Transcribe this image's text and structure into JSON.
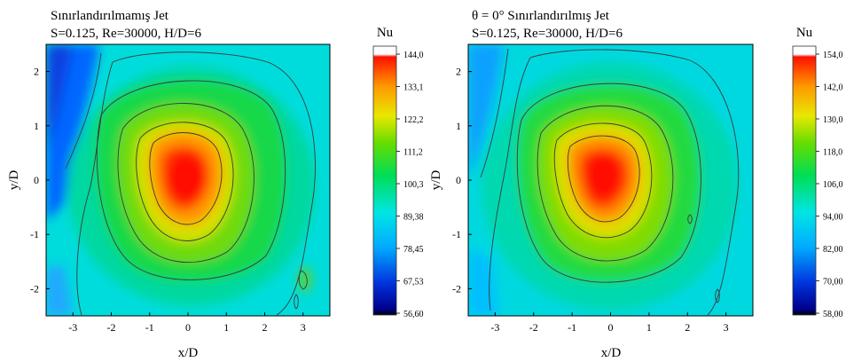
{
  "chart_data": [
    {
      "type": "heatmap",
      "title": "Sınırlandırılmamış Jet",
      "subtitle": "S=0.125, Re=30000, H/D=6",
      "xlabel": "x/D",
      "ylabel": "y/D",
      "xlim": [
        -3.7,
        3.7
      ],
      "ylim": [
        -2.5,
        2.5
      ],
      "xticks": [
        "-3",
        "-2",
        "-1",
        "0",
        "1",
        "2",
        "3"
      ],
      "yticks": [
        "2",
        "1",
        "0",
        "-1",
        "-2"
      ],
      "colorbar": {
        "title": "Nu",
        "range": [
          56.6,
          144.0
        ],
        "tick_labels": [
          "144,0",
          "133,1",
          "122,2",
          "111,2",
          "100,3",
          "89,38",
          "78,45",
          "67,53",
          "56,60"
        ]
      },
      "peak": {
        "x": 0.0,
        "y": 0.0,
        "value": 144.0
      },
      "contour_levels": [
        82,
        94,
        106,
        118,
        130
      ]
    },
    {
      "type": "heatmap",
      "title": "θ = 0° Sınırlandırılmış Jet",
      "subtitle": "S=0.125, Re=30000, H/D=6",
      "xlabel": "x/D",
      "ylabel": "y/D",
      "xlim": [
        -3.7,
        3.7
      ],
      "ylim": [
        -2.5,
        2.5
      ],
      "xticks": [
        "-3",
        "-2",
        "-1",
        "0",
        "1",
        "2",
        "3"
      ],
      "yticks": [
        "2",
        "1",
        "0",
        "-1",
        "-2"
      ],
      "colorbar": {
        "title": "Nu",
        "range": [
          58.0,
          154.0
        ],
        "tick_labels": [
          "154,0",
          "142,0",
          "130,0",
          "118,0",
          "106,0",
          "94,00",
          "82,00",
          "70,00",
          "58,00"
        ]
      },
      "peak": {
        "x": 0.0,
        "y": -0.1,
        "value": 154.0
      },
      "contour_levels": [
        86,
        98,
        112,
        126,
        140
      ]
    }
  ],
  "colors": {
    "low": "#0000cc",
    "mid": "#00e060",
    "high": "#ff0000"
  }
}
